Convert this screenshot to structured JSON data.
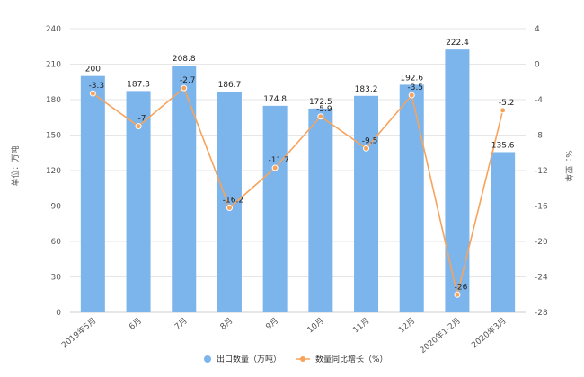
{
  "chart_data": {
    "type": "bar",
    "categories": [
      "2019年5月",
      "6月",
      "7月",
      "8月",
      "9月",
      "10月",
      "11月",
      "12月",
      "2020年1-2月",
      "2020年3月"
    ],
    "series": [
      {
        "name": "出口数量（万吨）",
        "type": "bar",
        "axis": "left",
        "color": "#7cb5ec",
        "values": [
          200,
          187.3,
          208.8,
          186.7,
          174.8,
          172.5,
          183.2,
          192.6,
          222.4,
          135.6
        ]
      },
      {
        "name": "数量同比增长（%）",
        "type": "line",
        "axis": "right",
        "color": "#f7a35c",
        "values": [
          -3.3,
          -7,
          -2.7,
          -16.2,
          -11.7,
          -5.9,
          -9.5,
          -3.5,
          -26,
          -5.2
        ]
      }
    ],
    "bar_labels": [
      "200",
      "187.3",
      "208.8",
      "186.7",
      "174.8",
      "172.5",
      "183.2",
      "192.6",
      "222.4",
      "135.6"
    ],
    "line_labels": [
      "-3.3",
      "-7",
      "-2.7",
      "-16.2",
      "-11.7",
      "-5.9",
      "-9.5",
      "-3.5",
      "-26",
      "-5.2"
    ],
    "ylabel_left": "单位：万吨",
    "ylabel_right": "%：亚单",
    "ylim_left": [
      0,
      240
    ],
    "yticks_left": [
      0,
      30,
      60,
      90,
      120,
      150,
      180,
      210,
      240
    ],
    "ylim_right": [
      -28,
      4
    ],
    "yticks_right": [
      -28,
      -24,
      -20,
      -16,
      -12,
      -8,
      -4,
      0,
      4
    ],
    "grid": true,
    "legend_position": "bottom"
  }
}
